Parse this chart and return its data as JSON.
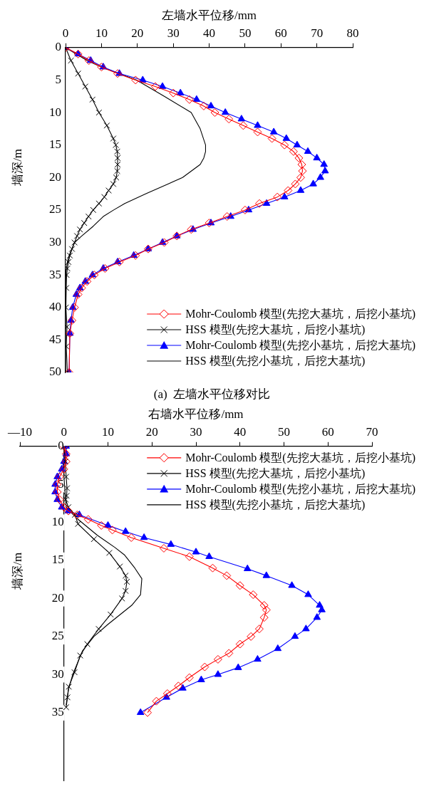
{
  "chart_data": [
    {
      "type": "line",
      "xlabel": "左墙水平位移/mm",
      "ylabel": "墙深/m",
      "xlim": [
        0,
        80
      ],
      "xticks": [
        0,
        10,
        20,
        30,
        40,
        50,
        60,
        70,
        80
      ],
      "ylim": [
        50,
        0
      ],
      "yticks": [
        0,
        5,
        10,
        15,
        20,
        25,
        30,
        35,
        40,
        45,
        50
      ],
      "grid": false,
      "legend": "bottom right",
      "annotations": [
        "(a)  左墙水平位移对比"
      ],
      "series": [
        {
          "name": "Mohr-Coulomb 模型(先挖大基坑，后挖小基坑)",
          "color": "#ff0000",
          "marker": "diamond",
          "x": [
            0,
            3.5,
            6.5,
            10,
            14.5,
            19.5,
            25,
            30,
            34.5,
            38.5,
            41.6,
            45.5,
            49.5,
            53.5,
            57.5,
            61,
            63.5,
            65,
            65.8,
            66,
            65.5,
            64,
            62,
            59,
            54,
            50,
            45,
            40,
            35,
            31,
            27.5,
            23,
            19.5,
            15,
            11,
            8,
            6,
            4.5,
            3.5,
            2.5,
            1.8,
            1.2,
            1
          ],
          "values": [
            0,
            1,
            2,
            3,
            4,
            5,
            6,
            7,
            8,
            9,
            10,
            11,
            12,
            13,
            14,
            15,
            16,
            17,
            18,
            19,
            20,
            21,
            22,
            23,
            24,
            25,
            26,
            27,
            28,
            29,
            30,
            31,
            32,
            33,
            34,
            35,
            36,
            37,
            38,
            40,
            42,
            44,
            50
          ]
        },
        {
          "name": "HSS 模型(先挖大基坑，后挖小基坑)",
          "color": "#000000",
          "marker": "cross",
          "x": [
            0,
            1.5,
            3.5,
            5.5,
            7.5,
            9.3,
            11.5,
            13.3,
            14,
            14.4,
            14.5,
            14.5,
            14.4,
            14.1,
            13.3,
            12,
            10.8,
            9.3,
            7.7,
            6.4,
            5.2,
            4,
            3.2,
            2.5,
            1.8,
            1.2,
            0.8,
            0.5,
            0.3,
            0.2,
            0.1,
            0.4,
            0.2,
            0.5
          ],
          "values": [
            0,
            2,
            4,
            6,
            8,
            10,
            12,
            14,
            15,
            16,
            17,
            18,
            19,
            20,
            21,
            22,
            23,
            24,
            25,
            26,
            27,
            28,
            29,
            30,
            31,
            32,
            33,
            34,
            35,
            37,
            40,
            43,
            46,
            50
          ]
        },
        {
          "name": "Mohr-Coulomb 模型(先挖小基坑，后挖大基坑)",
          "color": "#0000ff",
          "marker": "triangle",
          "x": [
            0,
            3.5,
            7,
            10.5,
            15,
            21.5,
            27,
            32,
            36.5,
            40.5,
            44.5,
            49,
            53.5,
            58,
            61.5,
            64.5,
            67.5,
            70,
            72,
            72.3,
            71,
            69,
            65.5,
            61,
            56,
            51,
            46,
            40.5,
            35.5,
            31,
            27,
            23,
            19,
            14.5,
            10.5,
            7.5,
            5.5,
            4,
            3,
            2,
            1.5,
            1.2,
            1
          ],
          "values": [
            0,
            1,
            2,
            3,
            4,
            5,
            6,
            7,
            8,
            9,
            10,
            11,
            12,
            13,
            14,
            15,
            16,
            17,
            18,
            19,
            20,
            21,
            22,
            23,
            24,
            25,
            26,
            27,
            28,
            29,
            30,
            31,
            32,
            33,
            34,
            35,
            36,
            37,
            38,
            40,
            42,
            44,
            50
          ]
        },
        {
          "name": "HSS 模型(先挖小基坑，后挖大基坑)",
          "color": "#000000",
          "marker": "none",
          "x": [
            0,
            6,
            10,
            19.8,
            27.5,
            35,
            37.5,
            39,
            39,
            38.5,
            37.5,
            32.6,
            28.5,
            22.4,
            16.5,
            13.4,
            10.5,
            7.7,
            4.5,
            2.5,
            1,
            0.5,
            0,
            0
          ],
          "values": [
            0,
            2,
            3,
            5,
            7.5,
            10,
            12.5,
            15,
            16,
            17,
            18,
            20,
            21,
            22.5,
            24,
            25,
            26,
            27.5,
            29,
            30,
            32,
            33,
            35,
            50
          ]
        }
      ]
    },
    {
      "type": "line",
      "xlabel": "右墙水平位移/mm",
      "ylabel": "墙深/m",
      "xlim": [
        -10,
        70
      ],
      "xticks": [
        {
          "value": -10,
          "label": "—10"
        },
        0,
        10,
        20,
        30,
        40,
        50,
        60,
        70
      ],
      "ylim": [
        44,
        0
      ],
      "yticks": [
        0,
        5,
        10,
        15,
        20,
        25,
        30,
        35
      ],
      "grid": false,
      "legend": "top right",
      "series": [
        {
          "name": "Mohr-Coulomb 模型(先挖大基坑，后挖小基坑)",
          "color": "#ff0000",
          "marker": "diamond",
          "x": [
            0,
            0.5,
            0.5,
            0,
            -1,
            -1.5,
            -1.5,
            -1,
            0,
            1,
            3,
            5.5,
            8.5,
            11,
            15.3,
            22.7,
            28.5,
            33.8,
            37,
            40,
            43,
            45.5,
            46,
            45.5,
            44.4,
            42.5,
            40,
            37.5,
            35,
            32,
            28.5,
            26,
            23.5,
            21,
            19
          ],
          "values": [
            0,
            1,
            2,
            3,
            4,
            5,
            6,
            7,
            8,
            8.5,
            9,
            9.6,
            10.4,
            11,
            12,
            13.4,
            14.5,
            16,
            17,
            18.3,
            19.5,
            20.9,
            21.5,
            22.5,
            24,
            25,
            26,
            27.2,
            28,
            29,
            30.4,
            31.5,
            32.5,
            33.5,
            35
          ]
        },
        {
          "name": "HSS 模型(先挖大基坑，后挖小基坑)",
          "color": "#000000",
          "marker": "cross",
          "x": [
            0,
            0.3,
            0.5,
            0.7,
            0.6,
            0.4,
            1,
            2.5,
            3.2,
            6.8,
            10.3,
            12.7,
            14,
            14.3,
            14,
            13.2,
            10.6,
            7.9,
            5.3,
            3.7,
            2.4,
            1.1,
            0.8,
            0.5
          ],
          "values": [
            0,
            2,
            4,
            5.5,
            6.5,
            7,
            8,
            9,
            10.2,
            12.2,
            14,
            15.8,
            17,
            17.8,
            19,
            20,
            22.1,
            24,
            26,
            27.5,
            29.7,
            31.6,
            33,
            34.3
          ]
        },
        {
          "name": "Mohr-Coulomb 模型(先挖小基坑，后挖大基坑)",
          "color": "#0000ff",
          "marker": "triangle",
          "x": [
            0.5,
            0.5,
            0,
            -0.5,
            -1.5,
            -2,
            -2,
            -1.5,
            -0.5,
            1,
            3.5,
            10,
            14,
            18.2,
            24.3,
            30,
            33,
            41.7,
            46,
            51.8,
            55.5,
            58.1,
            58.6,
            57.5,
            55,
            52.5,
            48.6,
            44,
            39.6,
            35,
            31.2,
            27,
            23.3,
            17.4
          ],
          "values": [
            0,
            1,
            2,
            3,
            4,
            5,
            6,
            7,
            8,
            8.5,
            9,
            10.4,
            11.2,
            12,
            12.9,
            13.9,
            14.5,
            16.1,
            17,
            18.3,
            19.5,
            20.9,
            21.5,
            22.5,
            24,
            25,
            26.6,
            28,
            29.1,
            30,
            30.7,
            31.8,
            33,
            35
          ]
        },
        {
          "name": "HSS 模型(先挖小基坑，后挖大基坑)",
          "color": "#000000",
          "marker": "none",
          "x": [
            0,
            0,
            0.5,
            3,
            7.6,
            11.6,
            13.8,
            16.1,
            17.7,
            17.4,
            15.4,
            10,
            6.8,
            4.2,
            2,
            1,
            0.5
          ],
          "values": [
            0,
            4,
            8,
            9.5,
            11.7,
            13.3,
            14.3,
            16,
            17.4,
            19.5,
            20.9,
            23.4,
            25,
            26.9,
            30,
            32,
            34
          ]
        }
      ]
    }
  ]
}
